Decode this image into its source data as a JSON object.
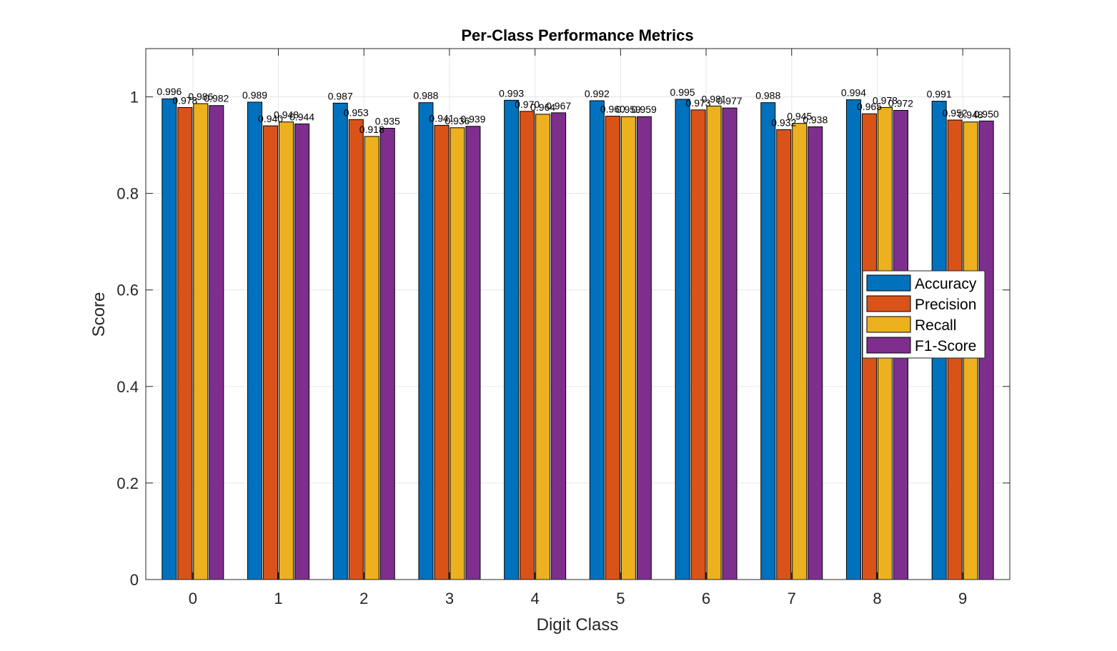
{
  "chart_data": {
    "type": "bar",
    "title": "Per-Class Performance Metrics",
    "xlabel": "Digit Class",
    "ylabel": "Score",
    "ylim": [
      0,
      1.1
    ],
    "yticks": [
      "0",
      "0.2",
      "0.4",
      "0.6",
      "0.8",
      "1"
    ],
    "ytick_values": [
      0,
      0.2,
      0.4,
      0.6,
      0.8,
      1.0
    ],
    "grid": true,
    "legend_position": "right",
    "categories": [
      "0",
      "1",
      "2",
      "3",
      "4",
      "5",
      "6",
      "7",
      "8",
      "9"
    ],
    "series": [
      {
        "name": "Accuracy",
        "color": "#0072BD",
        "values": [
          0.996,
          0.989,
          0.987,
          0.988,
          0.993,
          0.992,
          0.995,
          0.988,
          0.994,
          0.991
        ],
        "labels": [
          "0.996",
          "0.989",
          "0.987",
          "0.988",
          "0.993",
          "0.992",
          "0.995",
          "0.988",
          "0.994",
          "0.991"
        ]
      },
      {
        "name": "Precision",
        "color": "#D95319",
        "values": [
          0.978,
          0.94,
          0.953,
          0.941,
          0.97,
          0.96,
          0.973,
          0.932,
          0.965,
          0.952
        ],
        "labels": [
          "0.978",
          "0.940",
          "0.953",
          "0.941",
          "0.970",
          "0.960",
          "0.973",
          "0.932",
          "0.965",
          "0.952"
        ]
      },
      {
        "name": "Recall",
        "color": "#EDB120",
        "values": [
          0.986,
          0.948,
          0.918,
          0.936,
          0.964,
          0.959,
          0.981,
          0.945,
          0.978,
          0.948
        ],
        "labels": [
          "0.986",
          "0.948",
          "0.918",
          "0.936",
          "0.964",
          "0.959",
          "0.981",
          "0.945",
          "0.978",
          "0.948"
        ]
      },
      {
        "name": "F1-Score",
        "color": "#7E2F8E",
        "values": [
          0.982,
          0.944,
          0.935,
          0.939,
          0.967,
          0.959,
          0.977,
          0.938,
          0.972,
          0.95
        ],
        "labels": [
          "0.982",
          "0.944",
          "0.935",
          "0.939",
          "0.967",
          "0.959",
          "0.977",
          "0.938",
          "0.972",
          "0.950"
        ]
      }
    ]
  }
}
